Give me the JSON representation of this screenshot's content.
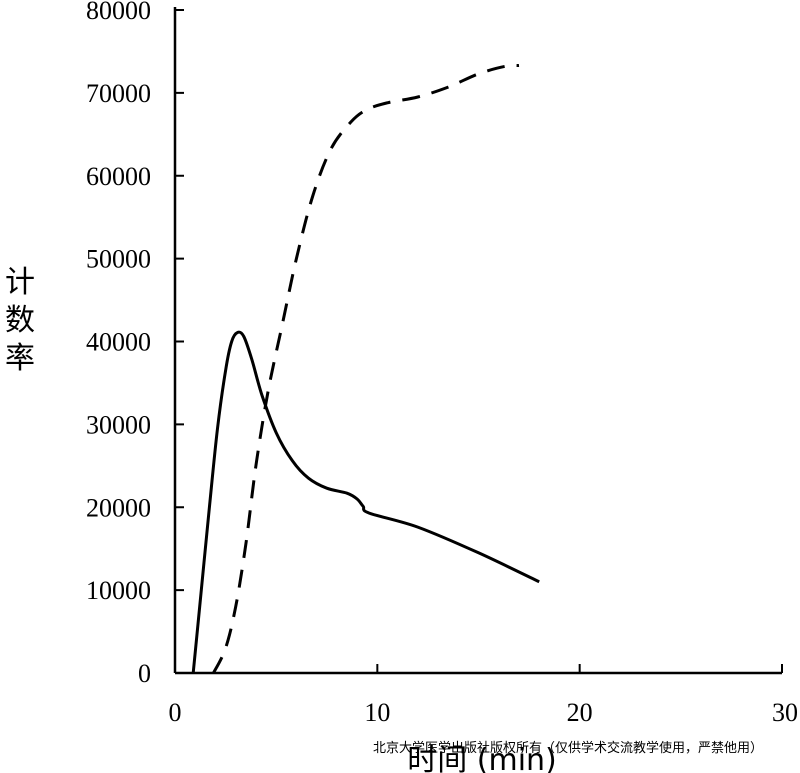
{
  "chart_data": {
    "type": "line",
    "title": "",
    "xlabel": "时间 (min)",
    "ylabel": "计数率",
    "xlim": [
      0,
      30
    ],
    "ylim": [
      0,
      80000
    ],
    "x_ticks": [
      0,
      10,
      20,
      30
    ],
    "x_tick_labels": [
      "0",
      "10",
      "20",
      "30"
    ],
    "y_ticks": [
      0,
      10000,
      20000,
      30000,
      40000,
      50000,
      60000,
      70000,
      80000
    ],
    "y_tick_labels": [
      "0",
      "10000",
      "20000",
      "30000",
      "40000",
      "50000",
      "60000",
      "70000",
      "80000"
    ],
    "grid": false,
    "legend": "none",
    "series": [
      {
        "style": "solid",
        "color": "#000000",
        "points": [
          [
            0.9,
            0
          ],
          [
            1.3,
            10000
          ],
          [
            1.7,
            20000
          ],
          [
            2.1,
            29500
          ],
          [
            2.5,
            36500
          ],
          [
            2.8,
            40000
          ],
          [
            3.1,
            41100
          ],
          [
            3.4,
            40600
          ],
          [
            3.8,
            37800
          ],
          [
            4.3,
            33500
          ],
          [
            5.0,
            29000
          ],
          [
            5.8,
            25600
          ],
          [
            6.6,
            23500
          ],
          [
            7.5,
            22300
          ],
          [
            8.5,
            21700
          ],
          [
            9.0,
            21000
          ],
          [
            9.3,
            20100
          ],
          [
            9.6,
            19300
          ],
          [
            12,
            17600
          ],
          [
            15,
            14500
          ],
          [
            18,
            11000
          ]
        ]
      },
      {
        "style": "dashed",
        "color": "#000000",
        "points": [
          [
            1.9,
            0
          ],
          [
            2.5,
            3000
          ],
          [
            3.0,
            8000
          ],
          [
            3.5,
            15500
          ],
          [
            4.0,
            25000
          ],
          [
            4.6,
            34000
          ],
          [
            5.3,
            42000
          ],
          [
            6.0,
            50000
          ],
          [
            6.8,
            57500
          ],
          [
            7.7,
            63200
          ],
          [
            8.7,
            66500
          ],
          [
            9.5,
            68000
          ],
          [
            10.5,
            68800
          ],
          [
            12,
            69500
          ],
          [
            13.5,
            70700
          ],
          [
            15,
            72300
          ],
          [
            16.3,
            73200
          ],
          [
            17,
            73300
          ]
        ]
      }
    ]
  },
  "watermark": "北京大学医学出版社版权所有（仅供学术交流教学使用，严禁他用）"
}
